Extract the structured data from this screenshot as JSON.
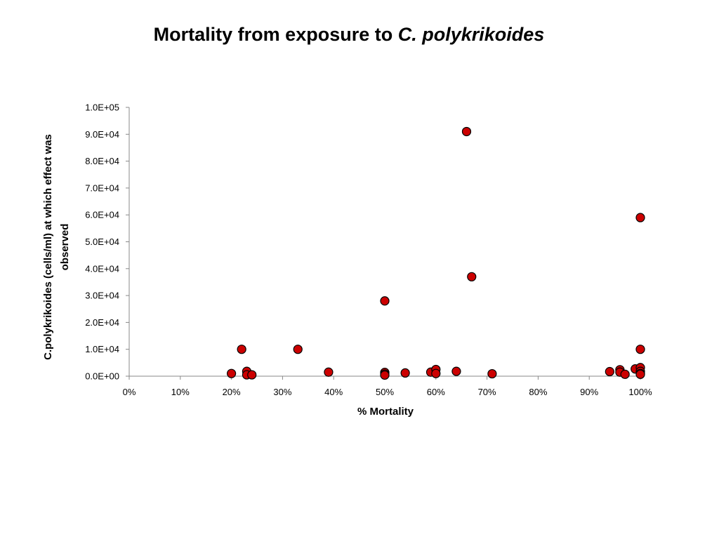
{
  "chart_data": {
    "type": "scatter",
    "title": "Mortality from exposure to",
    "title_species": "C. polykrikoides",
    "xlabel": "% Mortality",
    "ylabel_line1": "C.polykrikoides (cells/ml) at which effect was",
    "ylabel_line2": "observed",
    "xlim": [
      0,
      1
    ],
    "ylim": [
      0,
      100000
    ],
    "x_ticks": [
      0,
      0.1,
      0.2,
      0.3,
      0.4,
      0.5,
      0.6,
      0.7,
      0.8,
      0.9,
      1.0
    ],
    "x_tick_labels": [
      "0%",
      "10%",
      "20%",
      "30%",
      "40%",
      "50%",
      "60%",
      "70%",
      "80%",
      "90%",
      "100%"
    ],
    "y_ticks": [
      0,
      10000,
      20000,
      30000,
      40000,
      50000,
      60000,
      70000,
      80000,
      90000,
      100000
    ],
    "y_tick_labels": [
      "0.0E+00",
      "1.0E+04",
      "2.0E+04",
      "3.0E+04",
      "4.0E+04",
      "5.0E+04",
      "6.0E+04",
      "7.0E+04",
      "8.0E+04",
      "9.0E+04",
      "1.0E+05"
    ],
    "grid": false,
    "marker_color": "#cc0000",
    "marker_edge": "#000000",
    "points": [
      {
        "x": 0.66,
        "y": 91000
      },
      {
        "x": 1.0,
        "y": 59000
      },
      {
        "x": 0.67,
        "y": 37000
      },
      {
        "x": 0.5,
        "y": 28000
      },
      {
        "x": 0.22,
        "y": 10000
      },
      {
        "x": 0.33,
        "y": 10000
      },
      {
        "x": 1.0,
        "y": 10000
      },
      {
        "x": 0.2,
        "y": 1000
      },
      {
        "x": 0.23,
        "y": 1800
      },
      {
        "x": 0.23,
        "y": 500
      },
      {
        "x": 0.24,
        "y": 500
      },
      {
        "x": 0.39,
        "y": 1500
      },
      {
        "x": 0.5,
        "y": 1400
      },
      {
        "x": 0.5,
        "y": 800
      },
      {
        "x": 0.5,
        "y": 400
      },
      {
        "x": 0.54,
        "y": 1200
      },
      {
        "x": 0.59,
        "y": 1500
      },
      {
        "x": 0.6,
        "y": 2500
      },
      {
        "x": 0.6,
        "y": 1000
      },
      {
        "x": 0.64,
        "y": 1800
      },
      {
        "x": 0.71,
        "y": 900
      },
      {
        "x": 0.94,
        "y": 1700
      },
      {
        "x": 0.96,
        "y": 2400
      },
      {
        "x": 0.96,
        "y": 1500
      },
      {
        "x": 0.97,
        "y": 700
      },
      {
        "x": 0.99,
        "y": 2700
      },
      {
        "x": 1.0,
        "y": 3200
      },
      {
        "x": 1.0,
        "y": 1800
      },
      {
        "x": 1.0,
        "y": 1000
      },
      {
        "x": 1.0,
        "y": 700
      }
    ]
  }
}
